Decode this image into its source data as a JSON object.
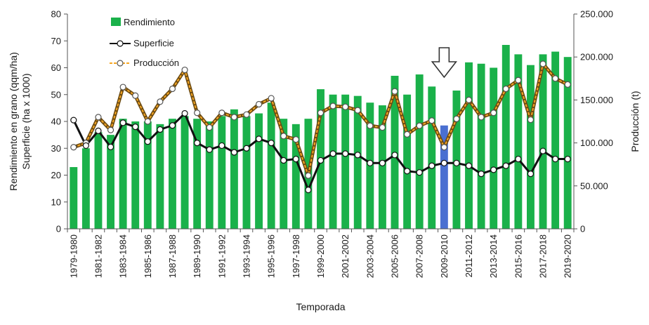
{
  "chart_data": {
    "type": "bar",
    "xlabel": "Temporada",
    "ylabel_left": [
      "Rendimiento en grano (qqm/ha)",
      "Superficie (ha x 1000)"
    ],
    "ylabel_right": "Producción (t)",
    "ylim_left": [
      0,
      80
    ],
    "ylim_right": [
      0,
      250000
    ],
    "yticks_left": [
      "0",
      "10",
      "20",
      "30",
      "40",
      "50",
      "60",
      "70",
      "80"
    ],
    "yticks_right": [
      "0",
      "50.000",
      "100.000",
      "150.000",
      "200.000",
      "250.000"
    ],
    "categories": [
      "1979-1980",
      "1980-1981",
      "1981-1982",
      "1982-1983",
      "1983-1984",
      "1984-1985",
      "1985-1986",
      "1986-1987",
      "1987-1988",
      "1988-1989",
      "1989-1990",
      "1990-1991",
      "1991-1992",
      "1992-1993",
      "1993-1994",
      "1994-1995",
      "1995-1996",
      "1996-1997",
      "1997-1998",
      "1998-1999",
      "1999-2000",
      "2000-2001",
      "2001-2002",
      "2002-2003",
      "2003-2004",
      "2004-2005",
      "2005-2006",
      "2006-2007",
      "2007-2008",
      "2008-2009",
      "2009-2010",
      "2010-2011",
      "2011-2012",
      "2012-2013",
      "2013-2014",
      "2014-2015",
      "2015-2016",
      "2016-2017",
      "2017-2018",
      "2018-2019",
      "2019-2020"
    ],
    "highlight_category": "2009-2010",
    "series": [
      {
        "name": "Rendimiento",
        "kind": "bar",
        "axis": "left",
        "color": "#1ab14a",
        "highlight_color": "#4a6fd1",
        "values": [
          23,
          30,
          36,
          35,
          41,
          40,
          40,
          39,
          41,
          42,
          41,
          40,
          42,
          44.5,
          42,
          43,
          47,
          41,
          39,
          41,
          52,
          50,
          50,
          49.5,
          47,
          46,
          57,
          50,
          57.5,
          53,
          38.5,
          51.5,
          62,
          61.5,
          60,
          68.5,
          65,
          61,
          65,
          66,
          64
        ]
      },
      {
        "name": "Superficie",
        "kind": "line",
        "axis": "left",
        "color": "#111111",
        "values": [
          40.5,
          31,
          36.5,
          30.5,
          39.5,
          38,
          32.5,
          37,
          38.5,
          43,
          32,
          29.5,
          31,
          28.5,
          30,
          33.5,
          32,
          25.5,
          26,
          14.5,
          25.5,
          28,
          28,
          27.5,
          24.5,
          24.5,
          27.5,
          21.5,
          21,
          23.5,
          24.5,
          24.5,
          23.5,
          20.5,
          22,
          23.5,
          26,
          20.5,
          29,
          26,
          26
        ]
      },
      {
        "name": "Producción",
        "kind": "line",
        "axis": "right",
        "color": "#f5a623",
        "values": [
          95000,
          100000,
          130000,
          115000,
          165000,
          155000,
          125000,
          148000,
          163000,
          185000,
          135000,
          118000,
          135000,
          130000,
          133000,
          145000,
          152000,
          108000,
          104000,
          62000,
          135000,
          143000,
          142000,
          138000,
          120000,
          118000,
          160000,
          110000,
          120000,
          126000,
          95000,
          128000,
          150000,
          130000,
          135000,
          163000,
          173000,
          127000,
          192000,
          175000,
          168000
        ]
      }
    ],
    "annotation": "arrow pointing down at 2009-2010",
    "legend_position": "top-left",
    "grid": false
  }
}
